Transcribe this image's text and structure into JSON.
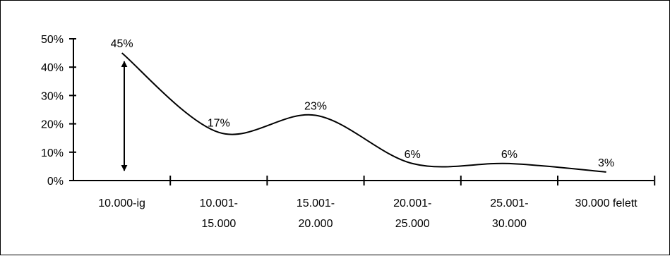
{
  "chart_data": {
    "type": "line",
    "smooth": true,
    "title": "",
    "xlabel": "",
    "ylabel": "",
    "ylim": [
      0,
      50
    ],
    "yticks": [
      "0%",
      "10%",
      "20%",
      "30%",
      "40%",
      "50%"
    ],
    "categories": [
      [
        "10.000-ig"
      ],
      [
        "10.001-",
        "15.000"
      ],
      [
        "15.001-",
        "20.000"
      ],
      [
        "20.001-",
        "25.000"
      ],
      [
        "25.001-",
        "30.000"
      ],
      [
        "30.000 felett"
      ]
    ],
    "values": [
      45,
      17,
      23,
      6,
      6,
      3
    ],
    "data_labels": [
      "45%",
      "17%",
      "23%",
      "6%",
      "6%",
      "3%"
    ],
    "annotation": "double-headed vertical arrow spanning 0% to 45% beside the first category",
    "grid": false,
    "legend": "none",
    "colors": {
      "line": "#000000",
      "axis": "#000000"
    }
  }
}
